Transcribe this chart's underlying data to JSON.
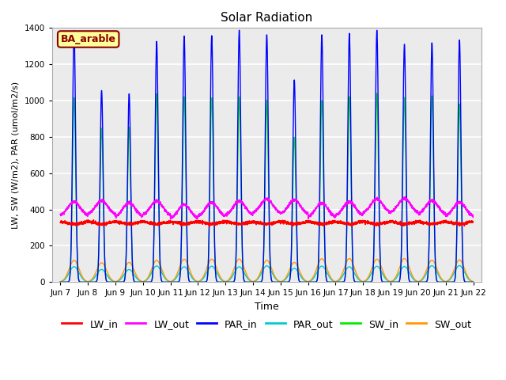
{
  "title": "Solar Radiation",
  "xlabel": "Time",
  "ylabel": "LW, SW (W/m2), PAR (umol/m2/s)",
  "annotation_text": "BA_arable",
  "annotation_facecolor": "#ffff99",
  "annotation_edgecolor": "#8b0000",
  "ylim": [
    0,
    1400
  ],
  "n_days": 15,
  "start_day": 7,
  "xtick_labels": [
    "Jun 7",
    "Jun 8",
    "Jun 9",
    "Jun 10",
    "Jun 11",
    "Jun 12",
    "Jun 13",
    "Jun 14",
    "Jun 15",
    "Jun 16",
    "Jun 17",
    "Jun 18",
    "Jun 19",
    "Jun 20",
    "Jun 21",
    "Jun 22"
  ],
  "series_colors": {
    "LW_in": "#ff0000",
    "LW_out": "#ff00ff",
    "PAR_in": "#0000ff",
    "PAR_out": "#00cccc",
    "SW_in": "#00ee00",
    "SW_out": "#ff9900"
  },
  "bg_color": "#ebebeb",
  "fig_bg_color": "#ffffff",
  "grid_color": "#ffffff",
  "yticks": [
    0,
    200,
    400,
    600,
    800,
    1000,
    1200,
    1400
  ],
  "points_per_day": 288
}
